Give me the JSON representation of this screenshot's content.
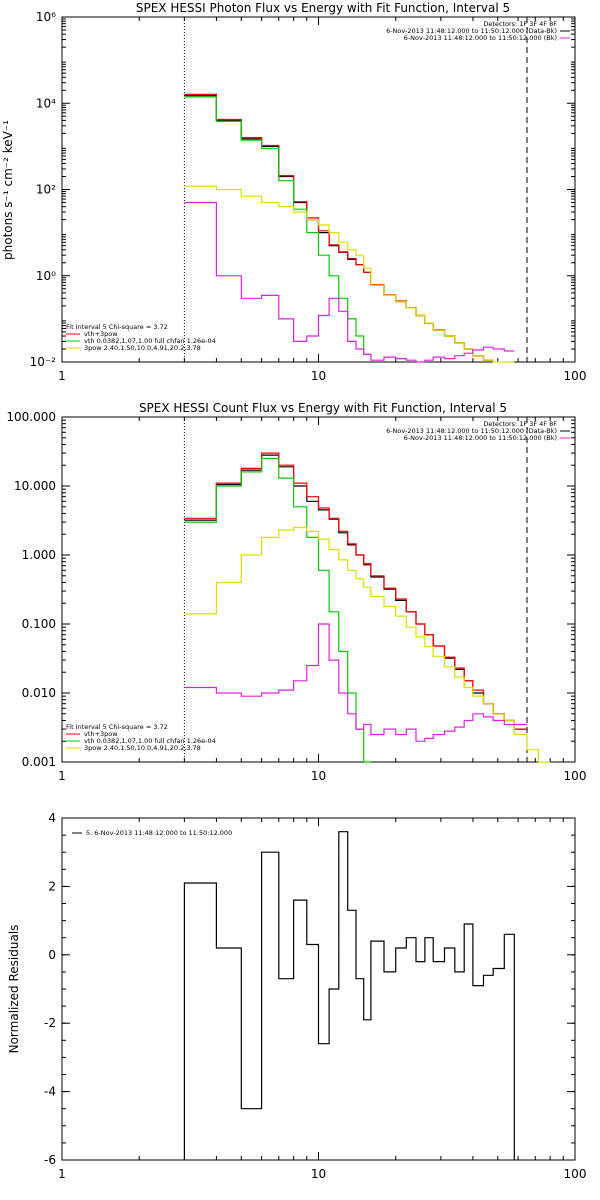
{
  "chart_data": [
    {
      "type": "line",
      "title": "SPEX HESSI Photon Flux vs Energy with Fit Function, Interval 5",
      "ylabel": "photons s⁻¹ cm⁻² keV⁻¹",
      "xlabel": "",
      "xscale": "log",
      "yscale": "log",
      "xlim": [
        1,
        100
      ],
      "ylim": [
        0.01,
        1000000
      ],
      "xticks": [
        1,
        10,
        100
      ],
      "xtick_labels": [
        "1",
        "10",
        "100"
      ],
      "yticks": [
        0.01,
        1,
        100,
        10000,
        1000000
      ],
      "ytick_labels": [
        "10⁻²",
        "10⁰",
        "10²",
        "10⁴",
        "10⁶"
      ],
      "vlines": [
        {
          "x": 3.0,
          "style": "dotted"
        },
        {
          "x": 65,
          "style": "dashed"
        }
      ],
      "legend_topright": [
        {
          "text": "Detectors: 1F 3F 4F 8F",
          "color": "#000000"
        },
        {
          "text": "6-Nov-2013 11:48:12.000 to 11:50:12.000 (Data-Bk)",
          "color": "#000000"
        },
        {
          "text": "6-Nov-2013 11:48:12.000 to 11:50:12.000 (Bk)",
          "color": "#e020e0"
        }
      ],
      "legend_bottomleft": [
        {
          "text": "Fit Interval 5   Chi-square = 3.72",
          "color": "#000000"
        },
        {
          "text": "vth+3pow",
          "color": "#ff0000"
        },
        {
          "text": "vth 0.0382,1.07,1.00  full chfan 1.26e-04",
          "color": "#00cc00"
        },
        {
          "text": "3pow 2.40,1.50,10.0,4.91,20.2,3.78",
          "color": "#dddd00"
        }
      ],
      "edges": [
        3.0,
        4.0,
        5.0,
        6.0,
        7.0,
        8.0,
        9.0,
        10.0,
        11.0,
        12.0,
        13.0,
        14.0,
        15.0,
        16.0,
        18.0,
        20.0,
        22.0,
        24.0,
        26.0,
        28.0,
        31.0,
        34.0,
        37.0,
        40.0,
        44.0,
        48.0,
        53.0,
        58.0,
        65.0,
        72.0,
        80.0
      ],
      "series": [
        {
          "name": "Data-Bk",
          "color": "#000000",
          "values": [
            15000,
            4000,
            1500,
            1000,
            200,
            50,
            20,
            10,
            5,
            3.5,
            2.4,
            1.8,
            1.2,
            0.6,
            0.35,
            0.25,
            0.18,
            0.12,
            0.08,
            0.055,
            0.04,
            0.028,
            0.02,
            0.014,
            0.011,
            null,
            null,
            null,
            null,
            null
          ]
        },
        {
          "name": "vth+3pow",
          "color": "#ff0000",
          "values": [
            16000,
            4200,
            1600,
            1050,
            210,
            52,
            22,
            11,
            5.2,
            3.6,
            2.5,
            1.8,
            1.2,
            0.62,
            0.36,
            0.26,
            0.18,
            0.12,
            0.08,
            0.056,
            0.04,
            0.028,
            0.02,
            0.014,
            0.011,
            null,
            null,
            null,
            null,
            null
          ]
        },
        {
          "name": "vth",
          "color": "#00cc00",
          "values": [
            14000,
            3800,
            1400,
            900,
            160,
            35,
            10,
            3,
            1,
            0.3,
            0.1,
            0.04,
            0.015,
            null,
            null,
            null,
            null,
            null,
            null,
            null,
            null,
            null,
            null,
            null,
            null,
            null,
            null,
            null,
            null,
            null
          ]
        },
        {
          "name": "3pow",
          "color": "#dddd00",
          "values": [
            120,
            100,
            70,
            50,
            40,
            30,
            20,
            15,
            10,
            6,
            4,
            3,
            1.5,
            0.6,
            0.35,
            0.25,
            0.18,
            0.12,
            0.08,
            0.055,
            0.04,
            0.028,
            0.02,
            0.014,
            0.011,
            0.009,
            0.007,
            null,
            null,
            null
          ]
        },
        {
          "name": "Bk",
          "color": "#e020e0",
          "values": [
            50,
            1,
            0.3,
            0.35,
            0.1,
            0.03,
            0.04,
            0.12,
            0.3,
            0.15,
            0.03,
            0.02,
            0.015,
            0.011,
            0.013,
            0.012,
            0.011,
            0.01,
            0.011,
            0.013,
            0.012,
            0.014,
            0.016,
            0.019,
            0.022,
            0.02,
            0.018,
            null,
            null,
            null
          ]
        }
      ]
    },
    {
      "type": "line",
      "title": "SPEX HESSI Count Flux vs Energy with Fit Function, Interval 5",
      "ylabel": "",
      "xlabel": "",
      "xscale": "log",
      "yscale": "log",
      "xlim": [
        1,
        100
      ],
      "ylim": [
        0.001,
        100
      ],
      "xticks": [
        1,
        10,
        100
      ],
      "xtick_labels": [
        "1",
        "10",
        "100"
      ],
      "yticks": [
        0.001,
        0.01,
        0.1,
        1,
        10,
        100
      ],
      "ytick_labels": [
        "0.001",
        "0.010",
        "0.100",
        "1.000",
        "10.000",
        "100.000"
      ],
      "vlines": [
        {
          "x": 3.0,
          "style": "dotted"
        },
        {
          "x": 65,
          "style": "dashed"
        }
      ],
      "legend_topright": [
        {
          "text": "Detectors: 1F 3F 4F 8F",
          "color": "#000000"
        },
        {
          "text": "6-Nov-2013 11:48:12.000 to 11:50:12.000 (Data-Bk)",
          "color": "#000000"
        },
        {
          "text": "6-Nov-2013 11:48:12.000 to 11:50:12.000 (Bk)",
          "color": "#e020e0"
        }
      ],
      "legend_bottomleft": [
        {
          "text": "Fit Interval 5   Chi-square = 3.72",
          "color": "#000000"
        },
        {
          "text": "vth+3pow",
          "color": "#ff0000"
        },
        {
          "text": "vth 0.0382,1.07,1.00  full chfan 1.26e-04",
          "color": "#00cc00"
        },
        {
          "text": "3pow 2.40,1.50,10.0,4.91,20.2,3.78",
          "color": "#dddd00"
        }
      ],
      "edges": [
        3.0,
        4.0,
        5.0,
        6.0,
        7.0,
        8.0,
        9.0,
        10.0,
        11.0,
        12.0,
        13.0,
        14.0,
        15.0,
        16.0,
        18.0,
        20.0,
        22.0,
        24.0,
        26.0,
        28.0,
        31.0,
        34.0,
        37.0,
        40.0,
        44.0,
        48.0,
        53.0,
        58.0,
        65.0,
        72.0,
        80.0
      ],
      "series": [
        {
          "name": "Data-Bk",
          "color": "#000000",
          "values": [
            3.2,
            10.5,
            17,
            28,
            19,
            10,
            6,
            4.5,
            3.3,
            2.1,
            1.4,
            1.0,
            0.72,
            0.48,
            0.32,
            0.22,
            0.15,
            0.1,
            0.07,
            0.048,
            0.032,
            0.022,
            0.015,
            0.01,
            0.007,
            0.005,
            0.004,
            0.003,
            null,
            null
          ]
        },
        {
          "name": "vth+3pow",
          "color": "#ff0000",
          "values": [
            3.4,
            11,
            18,
            30,
            20,
            11,
            7,
            4.8,
            3.4,
            2.2,
            1.45,
            1.0,
            0.75,
            0.5,
            0.33,
            0.23,
            0.15,
            0.1,
            0.07,
            0.048,
            0.033,
            0.023,
            0.015,
            0.011,
            0.007,
            0.005,
            0.004,
            0.003,
            null,
            null
          ]
        },
        {
          "name": "vth",
          "color": "#00cc00",
          "values": [
            3.0,
            10,
            16,
            25,
            13,
            5,
            1.8,
            0.6,
            0.15,
            0.04,
            0.01,
            0.003,
            0.001,
            null,
            null,
            null,
            null,
            null,
            null,
            null,
            null,
            null,
            null,
            null,
            null,
            null,
            null,
            null,
            null,
            null
          ]
        },
        {
          "name": "3pow",
          "color": "#dddd00",
          "values": [
            0.14,
            0.4,
            1.0,
            1.8,
            2.3,
            2.5,
            2.2,
            1.7,
            1.2,
            0.85,
            0.6,
            0.45,
            0.34,
            0.25,
            0.18,
            0.13,
            0.09,
            0.065,
            0.047,
            0.034,
            0.024,
            0.017,
            0.012,
            0.009,
            0.007,
            0.005,
            0.004,
            0.0025,
            0.0015,
            0.001
          ]
        },
        {
          "name": "Bk",
          "color": "#e020e0",
          "values": [
            0.012,
            0.01,
            0.009,
            0.01,
            0.011,
            0.015,
            0.025,
            0.1,
            0.03,
            0.01,
            0.005,
            0.003,
            0.0035,
            0.0025,
            0.003,
            0.0025,
            0.003,
            0.002,
            0.0022,
            0.0025,
            0.0028,
            0.0032,
            0.004,
            0.005,
            0.0045,
            0.004,
            0.0035,
            0.0035,
            null,
            null
          ]
        }
      ]
    },
    {
      "type": "line",
      "title": "",
      "ylabel": "Normalized Residuals",
      "xlabel": "",
      "xscale": "log",
      "yscale": "linear",
      "xlim": [
        1,
        100
      ],
      "ylim": [
        -6,
        4
      ],
      "xticks": [
        1,
        10,
        100
      ],
      "xtick_labels": [
        "1",
        "10",
        "100"
      ],
      "yticks": [
        -6,
        -4,
        -2,
        0,
        2,
        4
      ],
      "ytick_labels": [
        "-6",
        "-4",
        "-2",
        "0",
        "2",
        "4"
      ],
      "legend_topleft": [
        {
          "text": "5.  6-Nov-2013 11:48:12.000 to 11:50:12.000",
          "color": "#000000"
        }
      ],
      "edges": [
        3.0,
        4.0,
        5.0,
        6.0,
        7.0,
        8.0,
        9.0,
        10.0,
        11.0,
        12.0,
        13.0,
        14.0,
        15.0,
        16.0,
        18.0,
        20.0,
        22.0,
        24.0,
        26.0,
        28.0,
        31.0,
        34.0,
        37.0,
        40.0,
        44.0,
        48.0,
        53.0,
        58.0,
        65.0
      ],
      "series": [
        {
          "name": "",
          "color": "#000000",
          "values": [
            2.1,
            0.2,
            -4.5,
            3.0,
            -0.7,
            1.6,
            0.3,
            -2.6,
            -1.0,
            3.6,
            1.3,
            -0.7,
            -1.9,
            0.4,
            -0.5,
            0.2,
            0.5,
            -0.2,
            0.5,
            -0.2,
            0.2,
            -0.5,
            0.9,
            -0.9,
            -0.6,
            -0.4,
            0.6,
            null
          ]
        }
      ]
    }
  ]
}
